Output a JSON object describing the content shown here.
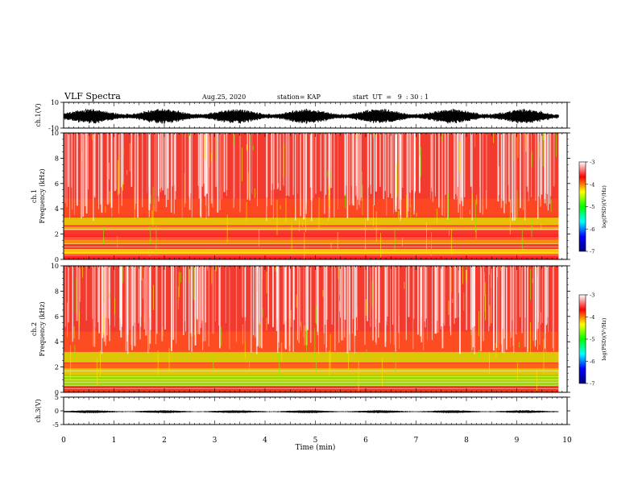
{
  "header": {
    "title": "VLF Spectra",
    "date": "Aug.25, 2020",
    "station": "station= KAP",
    "start": "start  UT  =   9  : 30 : 1"
  },
  "colors": {
    "scale": [
      "#000080",
      "#0000ff",
      "#00ffff",
      "#00ff00",
      "#ffff00",
      "#ff0000",
      "#ffffff"
    ]
  },
  "chart_data": [
    {
      "type": "line",
      "name": "ch1-waveform",
      "ylabel": "ch.1(V)",
      "ylim": [
        -10,
        10
      ],
      "yticks": [
        "10",
        "-10"
      ],
      "xlim": [
        0,
        10
      ],
      "description_values": {
        "typical_min": -7,
        "typical_max": 6
      }
    },
    {
      "type": "heatmap",
      "name": "ch1-spectrogram",
      "ylabel": "ch.1\nFrequency  (kHz)",
      "ylim": [
        0,
        10
      ],
      "yticks": [
        "0",
        "2",
        "4",
        "6",
        "8",
        "10"
      ],
      "xlim": [
        0,
        10
      ],
      "data_end_min": 9.83,
      "colorbar": {
        "label": "log(PSD)(V²/Hz)",
        "range": [
          -7,
          -3
        ],
        "ticks": [
          "-3",
          "-4",
          "-5",
          "-6",
          "-7"
        ]
      }
    },
    {
      "type": "heatmap",
      "name": "ch2-spectrogram",
      "ylabel": "ch.2\nFrequency  (kHz)",
      "ylim": [
        0,
        10
      ],
      "yticks": [
        "0",
        "2",
        "4",
        "6",
        "8",
        "10"
      ],
      "xlim": [
        0,
        10
      ],
      "data_end_min": 9.83,
      "colorbar": {
        "label": "log(PSD)(V²/Hz)",
        "range": [
          -7,
          -3
        ],
        "ticks": [
          "-3",
          "-4",
          "-5",
          "-6",
          "-7"
        ]
      }
    },
    {
      "type": "line",
      "name": "ch3-waveform",
      "ylabel": "ch.3(V)",
      "ylim": [
        -5,
        5
      ],
      "yticks": [
        "5",
        "0",
        "-5"
      ],
      "xlim": [
        0,
        10
      ],
      "description_values": {
        "typical_min": -0.8,
        "typical_max": 0.3
      }
    }
  ],
  "xaxis": {
    "label": "Time  (min)",
    "ticks": [
      "0",
      "1",
      "2",
      "3",
      "4",
      "5",
      "6",
      "7",
      "8",
      "9",
      "10"
    ]
  }
}
